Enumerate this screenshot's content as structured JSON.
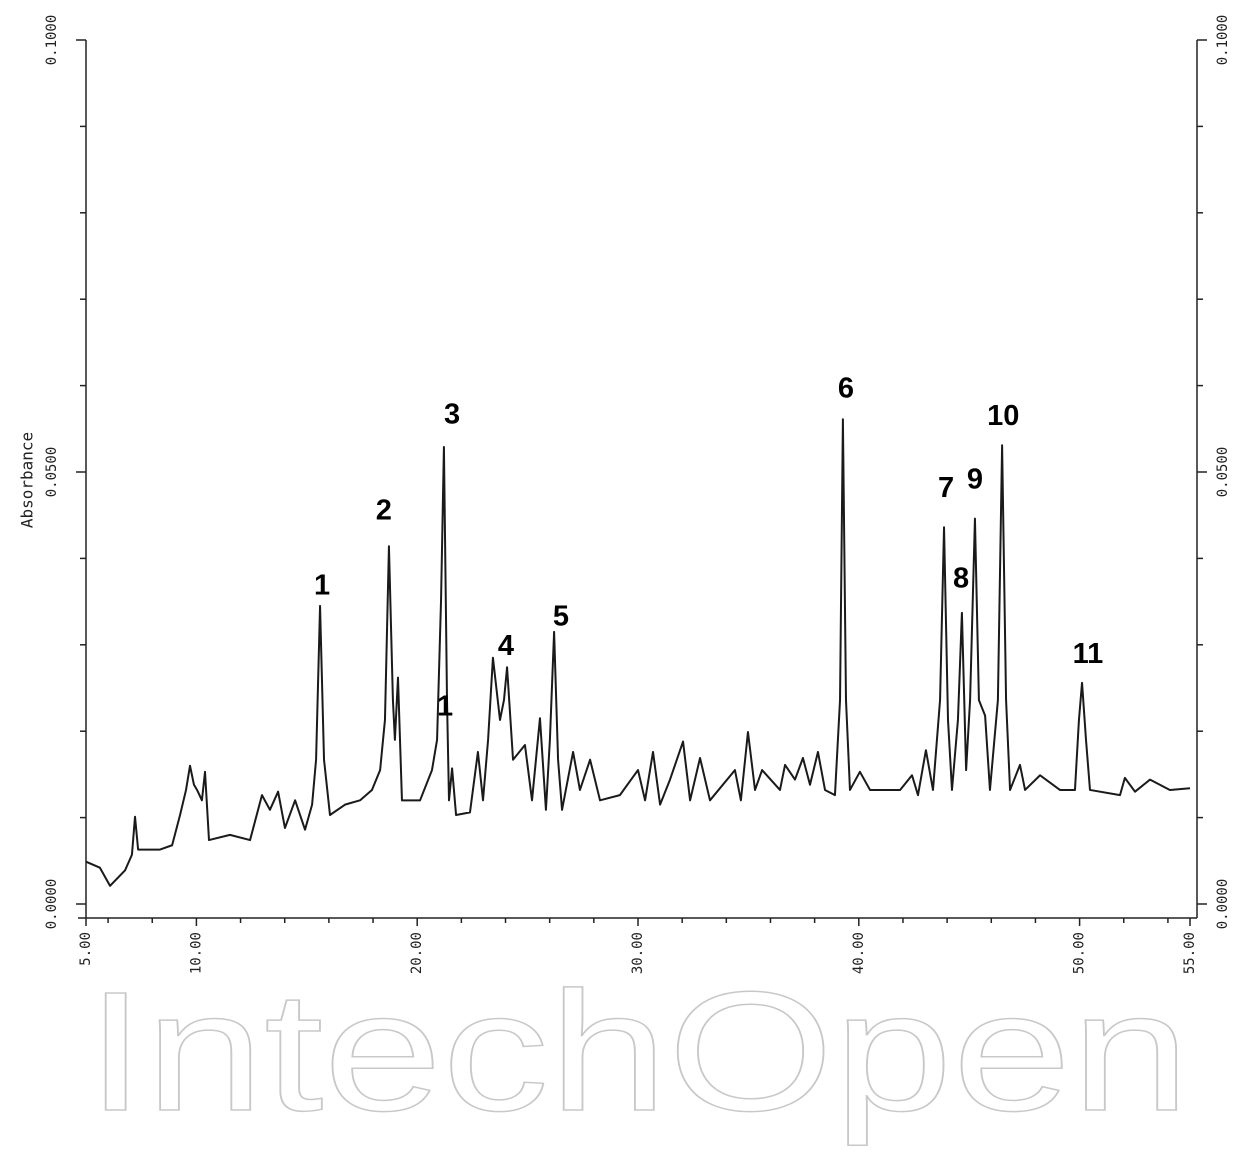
{
  "chart_data": {
    "type": "line",
    "y_label": "Absorbance",
    "watermark": "IntechOpen",
    "xlim": [
      5,
      55
    ],
    "ylim": [
      0,
      0.1
    ],
    "xticks": [
      {
        "value": 5,
        "label": "5.00"
      },
      {
        "value": 10,
        "label": "10.00"
      },
      {
        "value": 20,
        "label": "20.00"
      },
      {
        "value": 30,
        "label": "30.00"
      },
      {
        "value": 40,
        "label": "40.00"
      },
      {
        "value": 50,
        "label": "50.00"
      },
      {
        "value": 55,
        "label": "55.00"
      }
    ],
    "xminorticks": [
      6,
      8,
      12,
      14,
      16,
      18,
      22,
      24,
      26,
      28,
      32,
      34,
      36,
      38,
      42,
      44,
      46,
      48,
      52,
      54
    ],
    "yticks": [
      {
        "value": 0,
        "label": "0.0000"
      },
      {
        "value": 0.05,
        "label": "0.0500"
      },
      {
        "value": 0.1,
        "label": "0.1000"
      }
    ],
    "yminorticks": [
      0.01,
      0.02,
      0.03,
      0.04,
      0.06,
      0.07,
      0.08,
      0.09
    ],
    "color": "#1a1a1a",
    "x": [
      5.0,
      5.63,
      6.09,
      6.77,
      7.08,
      7.22,
      7.36,
      8.35,
      8.9,
      9.26,
      9.53,
      9.71,
      9.89,
      10.03,
      10.25,
      10.39,
      10.57,
      11.52,
      12.43,
      12.97,
      13.33,
      13.7,
      14.01,
      14.47,
      14.92,
      15.24,
      15.42,
      15.6,
      15.78,
      16.05,
      16.73,
      17.41,
      17.95,
      18.32,
      18.54,
      18.72,
      18.9,
      18.99,
      19.13,
      19.31,
      20.13,
      20.67,
      20.9,
      21.08,
      21.21,
      21.35,
      21.44,
      21.58,
      21.76,
      22.39,
      22.75,
      22.98,
      23.21,
      23.43,
      23.75,
      23.93,
      24.07,
      24.34,
      24.88,
      25.2,
      25.56,
      25.83,
      26.01,
      26.2,
      26.38,
      26.56,
      27.06,
      27.37,
      27.83,
      28.28,
      29.18,
      30.0,
      30.32,
      30.68,
      31.0,
      31.45,
      32.04,
      32.36,
      32.81,
      33.26,
      34.39,
      34.66,
      34.98,
      35.3,
      35.62,
      36.43,
      36.66,
      37.11,
      37.47,
      37.79,
      38.15,
      38.47,
      38.92,
      39.15,
      39.28,
      39.42,
      39.6,
      40.05,
      40.51,
      41.87,
      42.41,
      42.68,
      43.04,
      43.36,
      43.68,
      43.86,
      44.04,
      44.22,
      44.49,
      44.67,
      44.86,
      45.04,
      45.26,
      45.44,
      45.72,
      45.94,
      46.3,
      46.49,
      46.67,
      46.85,
      47.3,
      47.53,
      48.21,
      49.11,
      49.79,
      49.97,
      50.11,
      50.29,
      50.47,
      51.83,
      52.05,
      52.51,
      53.19,
      54.09,
      55.0
    ],
    "values": [
      0.0049,
      0.0042,
      0.0021,
      0.0039,
      0.0057,
      0.0101,
      0.0063,
      0.0063,
      0.0068,
      0.0103,
      0.0132,
      0.016,
      0.0138,
      0.0132,
      0.012,
      0.0153,
      0.0074,
      0.008,
      0.0074,
      0.0126,
      0.0109,
      0.013,
      0.0088,
      0.012,
      0.0086,
      0.0115,
      0.0167,
      0.0345,
      0.0167,
      0.0103,
      0.0115,
      0.012,
      0.0132,
      0.0155,
      0.0213,
      0.0414,
      0.0236,
      0.019,
      0.0262,
      0.012,
      0.012,
      0.0155,
      0.019,
      0.0352,
      0.0529,
      0.0236,
      0.012,
      0.0157,
      0.0103,
      0.0106,
      0.0176,
      0.012,
      0.019,
      0.0285,
      0.0213,
      0.0236,
      0.0274,
      0.0167,
      0.0184,
      0.012,
      0.0215,
      0.0109,
      0.019,
      0.0315,
      0.0167,
      0.0109,
      0.0176,
      0.0132,
      0.0167,
      0.012,
      0.0126,
      0.0155,
      0.012,
      0.0176,
      0.0115,
      0.0144,
      0.0188,
      0.012,
      0.0169,
      0.012,
      0.0155,
      0.012,
      0.0199,
      0.0132,
      0.0155,
      0.0132,
      0.0161,
      0.0144,
      0.0169,
      0.0138,
      0.0176,
      0.0132,
      0.0126,
      0.0236,
      0.0561,
      0.0236,
      0.0132,
      0.0153,
      0.0132,
      0.0132,
      0.0149,
      0.0126,
      0.0178,
      0.0132,
      0.0236,
      0.0436,
      0.0213,
      0.0132,
      0.0213,
      0.0337,
      0.0155,
      0.0236,
      0.0446,
      0.0236,
      0.0218,
      0.0132,
      0.0236,
      0.0531,
      0.0236,
      0.0132,
      0.0161,
      0.0132,
      0.0149,
      0.0132,
      0.0132,
      0.0213,
      0.0256,
      0.019,
      0.0132,
      0.0126,
      0.0146,
      0.013,
      0.0144,
      0.0132,
      0.0134
    ],
    "annotations": [
      {
        "text": "1",
        "x": 15.69,
        "y": 0.0367
      },
      {
        "text": "2",
        "x": 18.49,
        "y": 0.0454
      },
      {
        "text": "3",
        "x": 21.58,
        "y": 0.0565
      },
      {
        "text": "1",
        "x": 21.26,
        "y": 0.0227
      },
      {
        "text": "4",
        "x": 24.02,
        "y": 0.0297
      },
      {
        "text": "5",
        "x": 26.51,
        "y": 0.0331
      },
      {
        "text": "6",
        "x": 39.42,
        "y": 0.0595
      },
      {
        "text": "7",
        "x": 43.95,
        "y": 0.048
      },
      {
        "text": "8",
        "x": 44.63,
        "y": 0.0375
      },
      {
        "text": "9",
        "x": 45.26,
        "y": 0.049
      },
      {
        "text": "10",
        "x": 46.54,
        "y": 0.0563
      },
      {
        "text": "11",
        "x": 50.38,
        "y": 0.0288
      }
    ]
  }
}
